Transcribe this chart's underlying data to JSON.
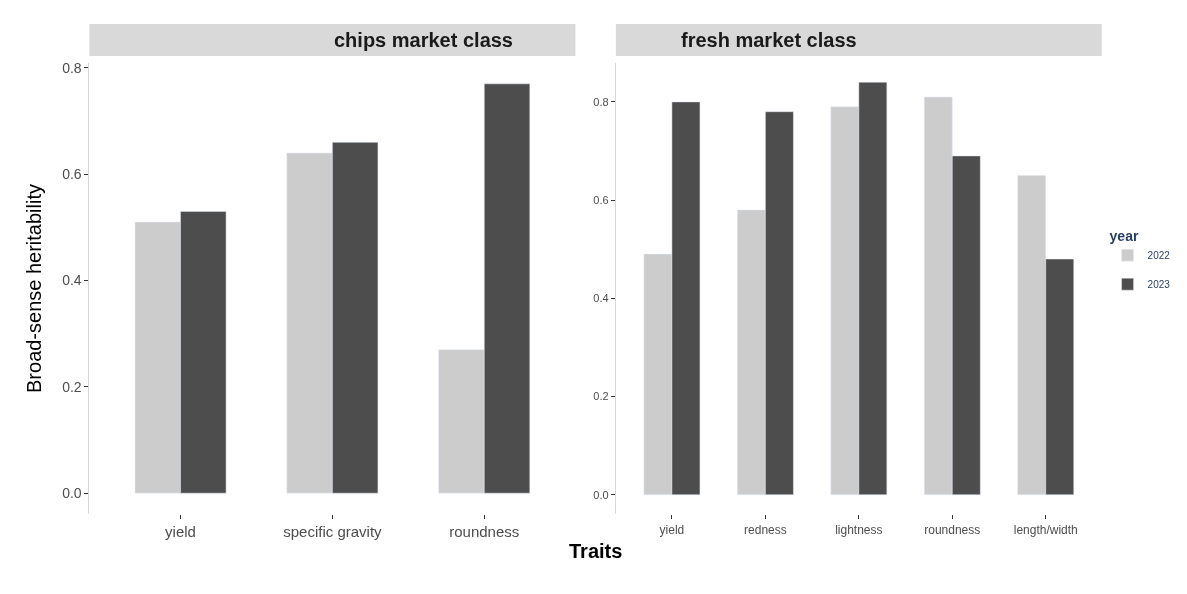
{
  "chart_data": [
    {
      "type": "bar",
      "title": "chips market class",
      "ylabel": "Broad-sense heritability",
      "xlabel": "Traits",
      "categories": [
        "yield",
        "specific gravity",
        "roundness"
      ],
      "series": [
        {
          "name": "2022",
          "color": "#cccccc",
          "values": [
            0.51,
            0.64,
            0.27
          ]
        },
        {
          "name": "2023",
          "color": "#4d4d4d",
          "values": [
            0.53,
            0.66,
            0.77
          ]
        }
      ],
      "ylim": [
        -0.04,
        0.81
      ],
      "yticks": [
        {
          "value": 0,
          "label": "0.0"
        },
        {
          "value": 0.2,
          "label": "0.2"
        },
        {
          "value": 0.4,
          "label": "0.4"
        },
        {
          "value": 0.6,
          "label": "0.6"
        },
        {
          "value": 0.8,
          "label": "0.8"
        }
      ],
      "legend": "right"
    },
    {
      "type": "bar",
      "title": "fresh market class",
      "legend_title": "year",
      "categories": [
        "yield",
        "redness",
        "lightness",
        "roundness",
        "length/width"
      ],
      "series": [
        {
          "name": "2022",
          "color": "#cccccc",
          "values": [
            0.49,
            0.58,
            0.79,
            0.81,
            0.65
          ]
        },
        {
          "name": "2023",
          "color": "#4d4d4d",
          "values": [
            0.8,
            0.78,
            0.84,
            0.69,
            0.48
          ]
        }
      ],
      "ylim": [
        -0.04,
        0.88
      ],
      "yticks": [
        {
          "value": 0,
          "label": "0.0"
        },
        {
          "value": 0.2,
          "label": "0.2"
        },
        {
          "value": 0.4,
          "label": "0.4"
        },
        {
          "value": 0.6,
          "label": "0.6"
        },
        {
          "value": 0.8,
          "label": "0.8"
        }
      ],
      "legend": "right"
    }
  ]
}
